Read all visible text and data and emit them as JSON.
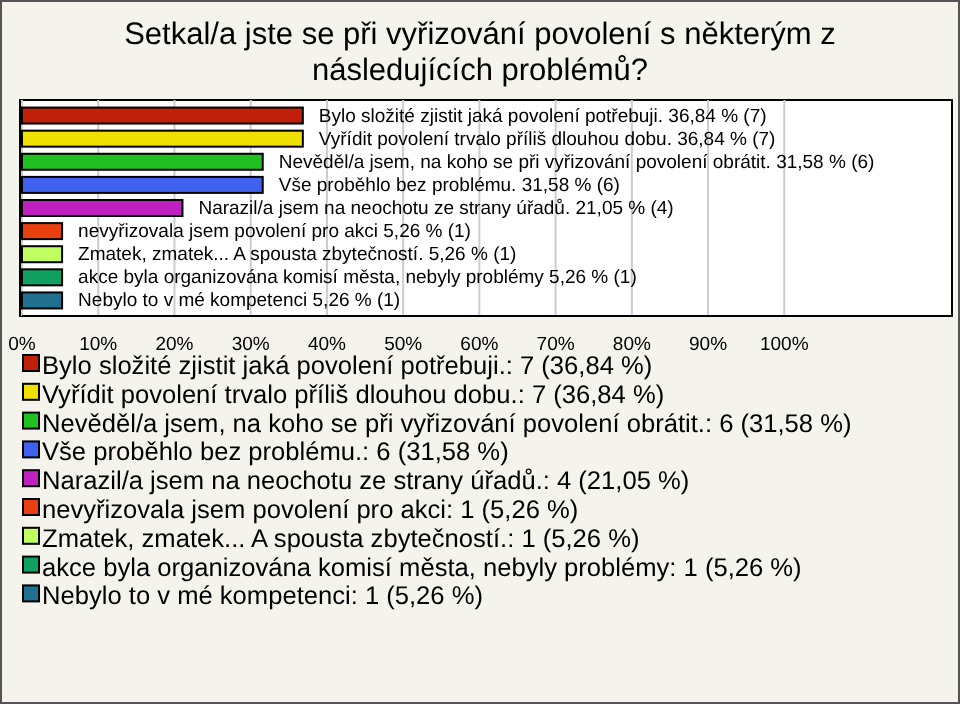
{
  "chart_data": {
    "type": "bar",
    "orientation": "horizontal",
    "stacked": true,
    "title": "Setkal/a jste se při vyřizování povolení s některým z následujících problémů?",
    "categories": [
      null,
      null,
      null,
      null,
      null,
      null,
      null,
      null,
      null
    ],
    "series": [
      {
        "name": "Bylo složité zjistit jaká povolení potřebuji.: 7 (36,84 %)",
        "color": "#c0200a",
        "values": [
          36.84,
          null,
          null,
          null,
          null,
          null,
          null,
          null,
          null
        ],
        "value_labels": [
          "Bylo složité zjistit jaká povolení potřebuji. 36,84 % (7)",
          null,
          null,
          null,
          null,
          null,
          null,
          null,
          null
        ]
      },
      {
        "name": "Vyřídit povolení trvalo příliš dlouhou dobu.: 7 (36,84 %)",
        "color": "#f0e000",
        "values": [
          null,
          36.84,
          null,
          null,
          null,
          null,
          null,
          null,
          null
        ],
        "value_labels": [
          null,
          "Vyřídit povolení trvalo příliš dlouhou dobu. 36,84 % (7)",
          null,
          null,
          null,
          null,
          null,
          null,
          null
        ]
      },
      {
        "name": "Nevěděl/a jsem, na koho se při vyřizování povolení obrátit.: 6 (31,58 %)",
        "color": "#20c020",
        "values": [
          null,
          null,
          31.58,
          null,
          null,
          null,
          null,
          null,
          null
        ],
        "value_labels": [
          null,
          null,
          "Nevěděl/a jsem, na koho se při vyřizování povolení obrátit. 31,58 % (6)",
          null,
          null,
          null,
          null,
          null,
          null
        ]
      },
      {
        "name": "Vše proběhlo bez problému.: 6 (31,58 %)",
        "color": "#4060f0",
        "values": [
          null,
          null,
          null,
          31.58,
          null,
          null,
          null,
          null,
          null
        ],
        "value_labels": [
          null,
          null,
          null,
          "Vše proběhlo bez problému. 31,58 % (6)",
          null,
          null,
          null,
          null,
          null
        ]
      },
      {
        "name": "Narazil/a jsem na neochotu ze strany úřadů.: 4 (21,05 %)",
        "color": "#c020c0",
        "values": [
          null,
          null,
          null,
          null,
          21.05,
          null,
          null,
          null,
          null
        ],
        "value_labels": [
          null,
          null,
          null,
          null,
          "Narazil/a jsem na neochotu ze strany úřadů. 21,05 % (4)",
          null,
          null,
          null,
          null
        ]
      },
      {
        "name": "nevyřizovala jsem povolení pro akci: 1 (5,26 %)",
        "color": "#e84010",
        "values": [
          null,
          null,
          null,
          null,
          null,
          5.26,
          null,
          null,
          null
        ],
        "value_labels": [
          null,
          null,
          null,
          null,
          null,
          "nevyřizovala jsem povolení pro akci 5,26 % (1)",
          null,
          null,
          null
        ]
      },
      {
        "name": "Zmatek, zmatek... A spousta zbytečností.: 1 (5,26 %)",
        "color": "#c0ff60",
        "values": [
          null,
          null,
          null,
          null,
          null,
          null,
          5.26,
          null,
          null
        ],
        "value_labels": [
          null,
          null,
          null,
          null,
          null,
          null,
          "Zmatek, zmatek... A spousta zbytečností. 5,26 % (1)",
          null,
          null
        ]
      },
      {
        "name": "akce byla organizována komisí města, nebyly problémy: 1 (5,26 %)",
        "color": "#10a060",
        "values": [
          null,
          null,
          null,
          null,
          null,
          null,
          null,
          5.26,
          null
        ],
        "value_labels": [
          null,
          null,
          null,
          null,
          null,
          null,
          null,
          "akce byla organizována komisí města, nebyly problémy 5,26 % (1)",
          null
        ]
      },
      {
        "name": "Nebylo to v mé kompetenci: 1 (5,26 %)",
        "color": "#207090",
        "values": [
          null,
          null,
          null,
          null,
          null,
          null,
          null,
          null,
          5.26
        ],
        "value_labels": [
          null,
          null,
          null,
          null,
          null,
          null,
          null,
          null,
          "Nebylo to v mé kompetenci 5,26 % (1)"
        ]
      }
    ],
    "xlim": [
      0,
      122
    ],
    "xticks": [
      {
        "value": 0,
        "label": "0%"
      },
      {
        "value": 10,
        "label": "10%"
      },
      {
        "value": 20,
        "label": "20%"
      },
      {
        "value": 30,
        "label": "30%"
      },
      {
        "value": 40,
        "label": "40%"
      },
      {
        "value": 50,
        "label": "50%"
      },
      {
        "value": 60,
        "label": "60%"
      },
      {
        "value": 70,
        "label": "70%"
      },
      {
        "value": 80,
        "label": "80%"
      },
      {
        "value": 90,
        "label": "90%"
      },
      {
        "value": 100,
        "label": "100%"
      }
    ],
    "grid": "x",
    "legend": "bottom",
    "tick_labels": "x"
  }
}
